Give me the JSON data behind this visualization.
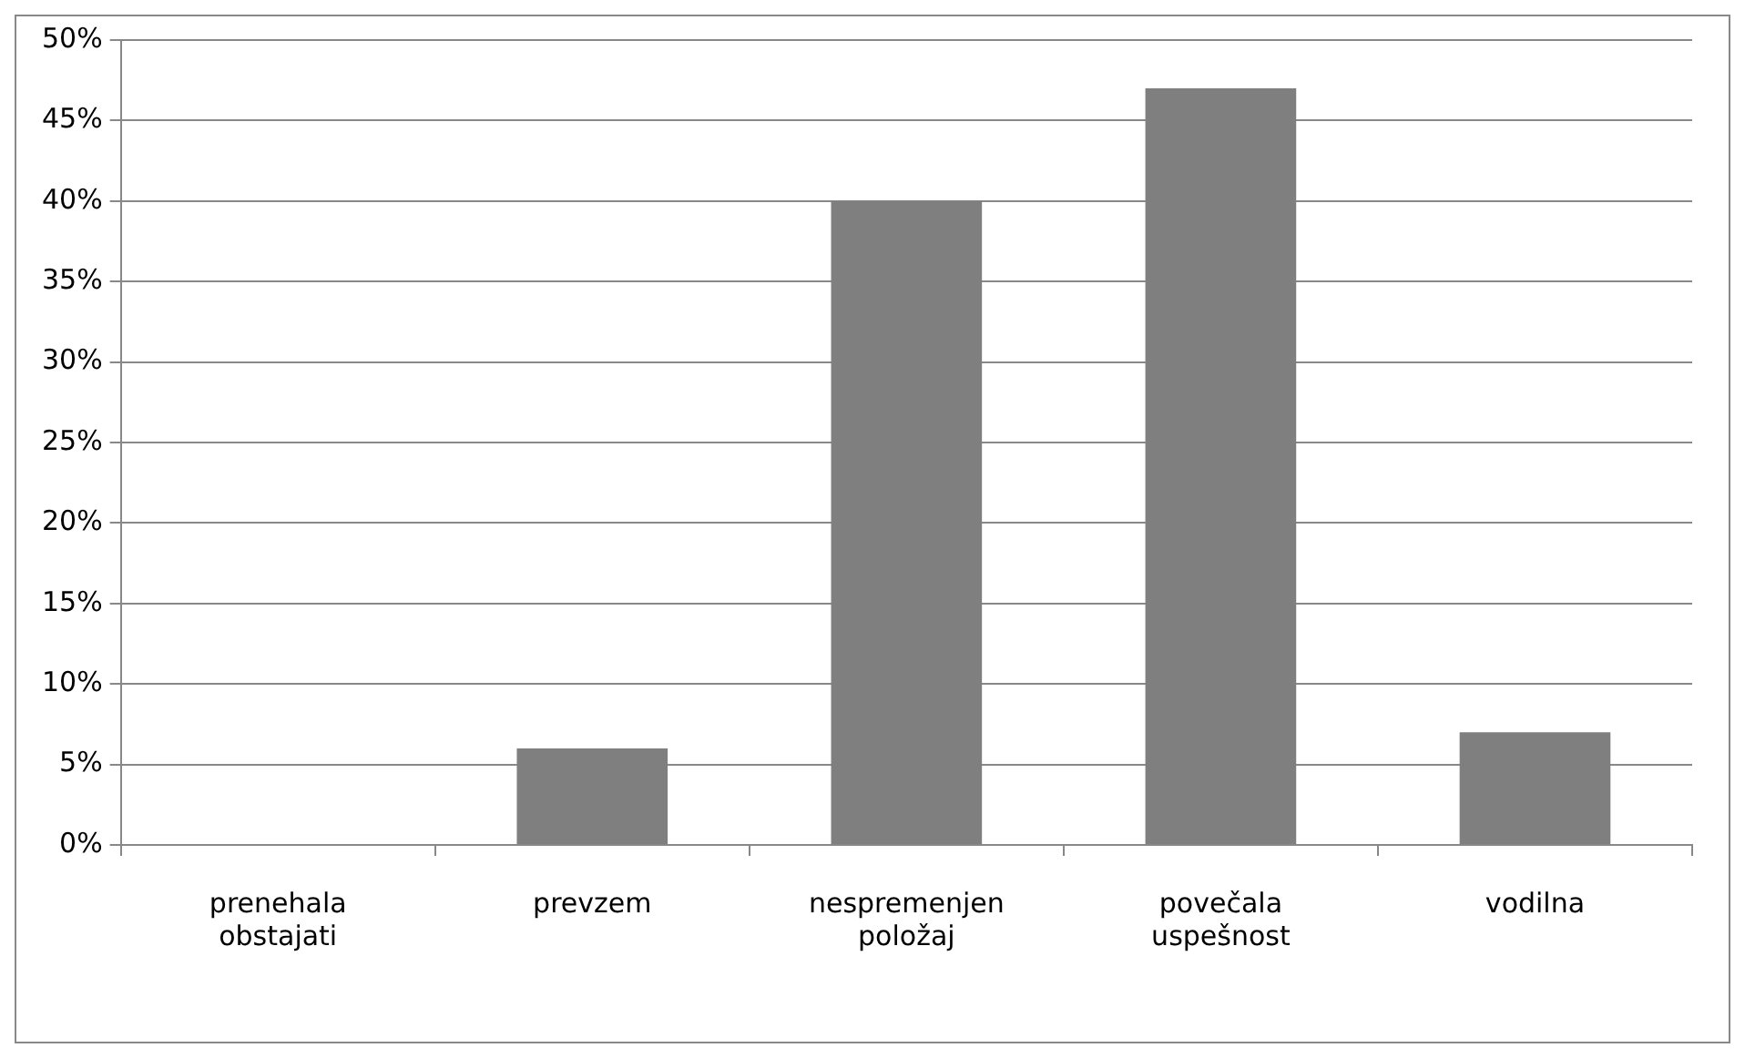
{
  "chart_data": {
    "type": "bar",
    "categories": [
      "prenehala obstajati",
      "prevzem",
      "nespremenjen položaj",
      "povečala uspešnost",
      "vodilna"
    ],
    "values": [
      0,
      6,
      40,
      47,
      7
    ],
    "color": "#7f7f7f",
    "ylim": [
      0,
      50
    ],
    "yticks": [
      {
        "value": 0,
        "label": "0%"
      },
      {
        "value": 5,
        "label": "5%"
      },
      {
        "value": 10,
        "label": "10%"
      },
      {
        "value": 15,
        "label": "15%"
      },
      {
        "value": 20,
        "label": "20%"
      },
      {
        "value": 25,
        "label": "25%"
      },
      {
        "value": 30,
        "label": "30%"
      },
      {
        "value": 35,
        "label": "35%"
      },
      {
        "value": 40,
        "label": "40%"
      },
      {
        "value": 45,
        "label": "45%"
      },
      {
        "value": 50,
        "label": "50%"
      }
    ],
    "grid": "y",
    "legend": false
  }
}
